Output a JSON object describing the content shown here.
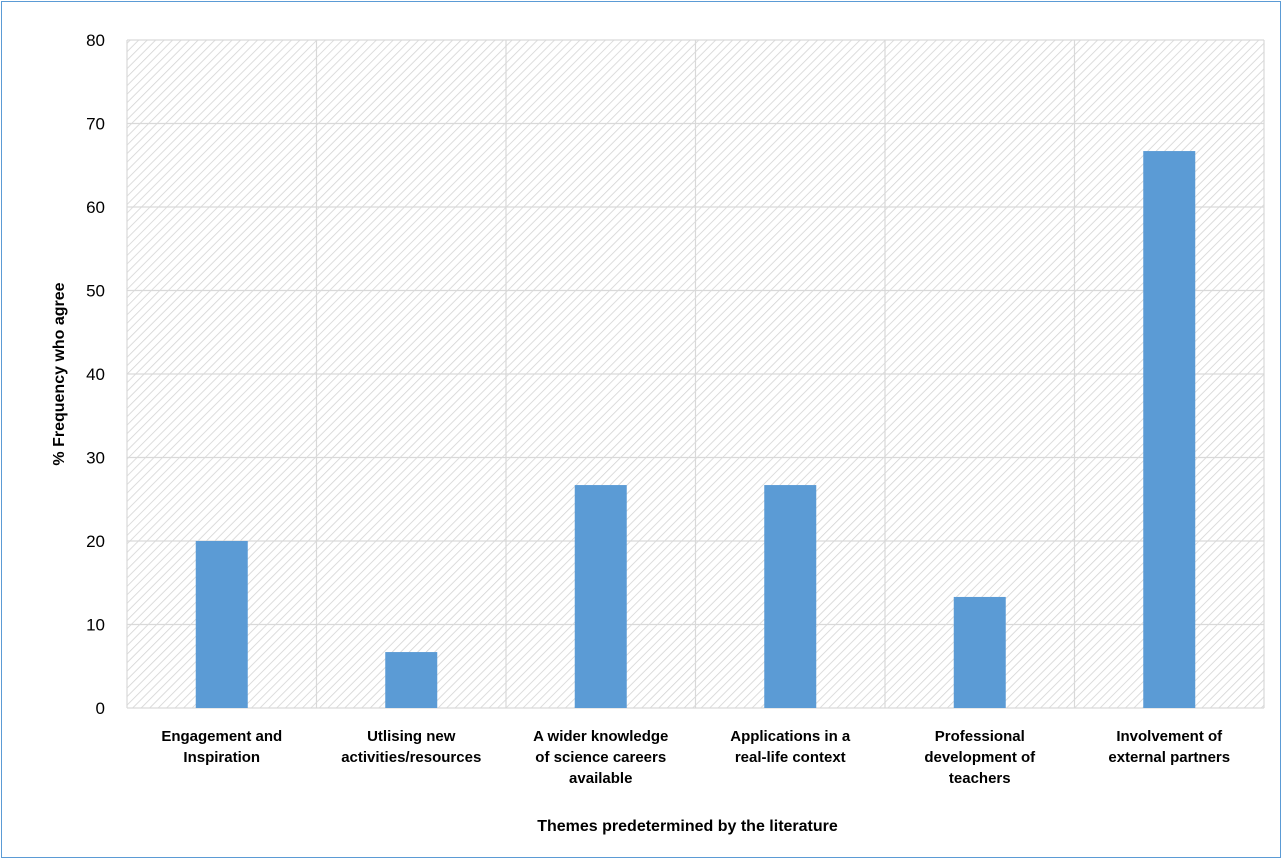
{
  "chart_data": {
    "type": "bar",
    "categories": [
      [
        "Engagement and",
        "Inspiration"
      ],
      [
        "Utlising new",
        "activities/resources"
      ],
      [
        "A wider knowledge",
        "of science careers",
        "available"
      ],
      [
        "Applications in a",
        "real-life context"
      ],
      [
        "Professional",
        "development of",
        "teachers"
      ],
      [
        "Involvement of",
        "external partners"
      ]
    ],
    "values": [
      20,
      6.7,
      26.7,
      26.7,
      13.3,
      66.7
    ],
    "xlabel": "Themes predetermined by the literature",
    "ylabel": "% Frequency who agree",
    "ylim": [
      0,
      80
    ],
    "yticks": [
      0,
      10,
      20,
      30,
      40,
      50,
      60,
      70,
      80
    ],
    "grid": true,
    "bar_color": "#5b9bd5",
    "background_pattern": "diagonal-hatch"
  }
}
